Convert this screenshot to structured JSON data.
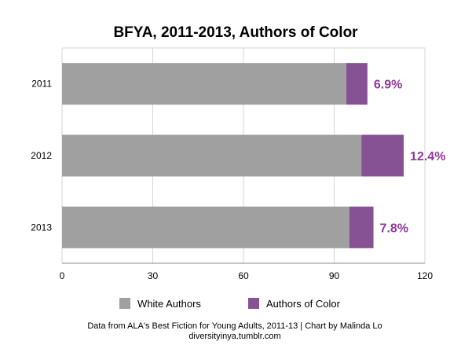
{
  "chart_data": {
    "type": "bar",
    "orientation": "horizontal",
    "stacked": true,
    "title": "BFYA, 2011-2013, Authors of Color",
    "categories": [
      "2011",
      "2012",
      "2013"
    ],
    "series": [
      {
        "name": "White Authors",
        "values": [
          94,
          99,
          95
        ],
        "color": "#a0a0a0"
      },
      {
        "name": "Authors of Color",
        "values": [
          7,
          14,
          8
        ],
        "color": "#865293"
      }
    ],
    "data_labels": [
      "6.9%",
      "12.4%",
      "7.8%"
    ],
    "data_label_color": "#8e3a9a",
    "xlim": [
      0,
      120
    ],
    "xticks": [
      0,
      30,
      60,
      90,
      120
    ],
    "xtick_labels": [
      "0",
      "30",
      "60",
      "90",
      "120"
    ],
    "grid": true,
    "legend_position": "bottom",
    "source_line1": "Data from ALA's Best Fiction for Young Adults, 2011-13 | Chart by Malinda Lo",
    "source_line2": "diversityinya.tumblr.com"
  }
}
